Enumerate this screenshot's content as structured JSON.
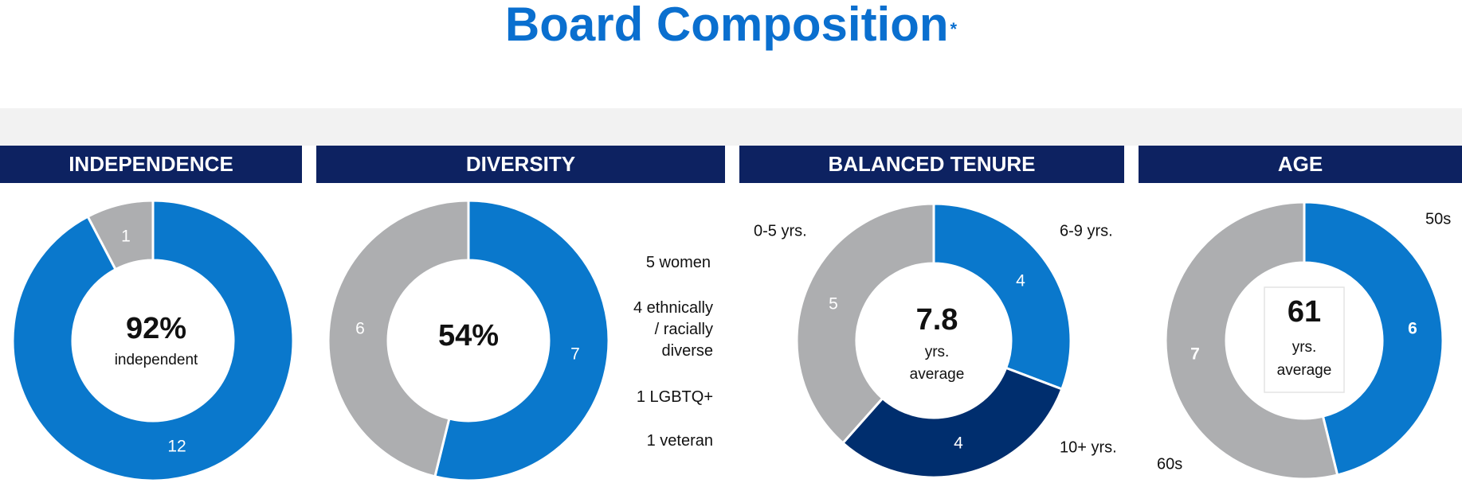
{
  "page": {
    "title": "Board Composition",
    "title_mark": "*"
  },
  "colors": {
    "primary_blue": "#0a78cc",
    "dark_blue": "#002e6e",
    "gray": "#adaeb0",
    "header_navy": "#0d2261",
    "title_blue": "#0a6fcf"
  },
  "chart_data": [
    {
      "type": "pie",
      "variant": "donut",
      "title": "INDEPENDENCE",
      "center_value": "92%",
      "center_caption": "independent",
      "series": [
        {
          "label": "",
          "value": 12,
          "color": "#0a78cc",
          "label_text": "12"
        },
        {
          "label": "",
          "value": 1,
          "color": "#adaeb0",
          "label_text": "1"
        }
      ]
    },
    {
      "type": "pie",
      "variant": "donut",
      "title": "DIVERSITY",
      "center_value": "54%",
      "center_caption": "",
      "series": [
        {
          "label": "",
          "value": 7,
          "color": "#0a78cc",
          "label_text": "7"
        },
        {
          "label": "",
          "value": 6,
          "color": "#adaeb0",
          "label_text": "6"
        }
      ],
      "annotations": [
        "5 women",
        "4 ethnically / racially diverse",
        "1 LGBTQ+",
        "1 veteran"
      ]
    },
    {
      "type": "pie",
      "variant": "donut",
      "title": "BALANCED TENURE",
      "center_value": "7.8",
      "center_caption": "yrs. average",
      "series": [
        {
          "label": "6-9 yrs.",
          "value": 4,
          "color": "#0a78cc",
          "label_text": "4"
        },
        {
          "label": "10+ yrs.",
          "value": 4,
          "color": "#002e6e",
          "label_text": "4"
        },
        {
          "label": "0-5 yrs.",
          "value": 5,
          "color": "#adaeb0",
          "label_text": "5"
        }
      ]
    },
    {
      "type": "pie",
      "variant": "donut",
      "title": "AGE",
      "center_value": "61",
      "center_caption": "yrs. average",
      "series": [
        {
          "label": "50s",
          "value": 6,
          "color": "#0a78cc",
          "label_text": "6"
        },
        {
          "label": "60s",
          "value": 7,
          "color": "#adaeb0",
          "label_text": "7"
        }
      ]
    }
  ]
}
